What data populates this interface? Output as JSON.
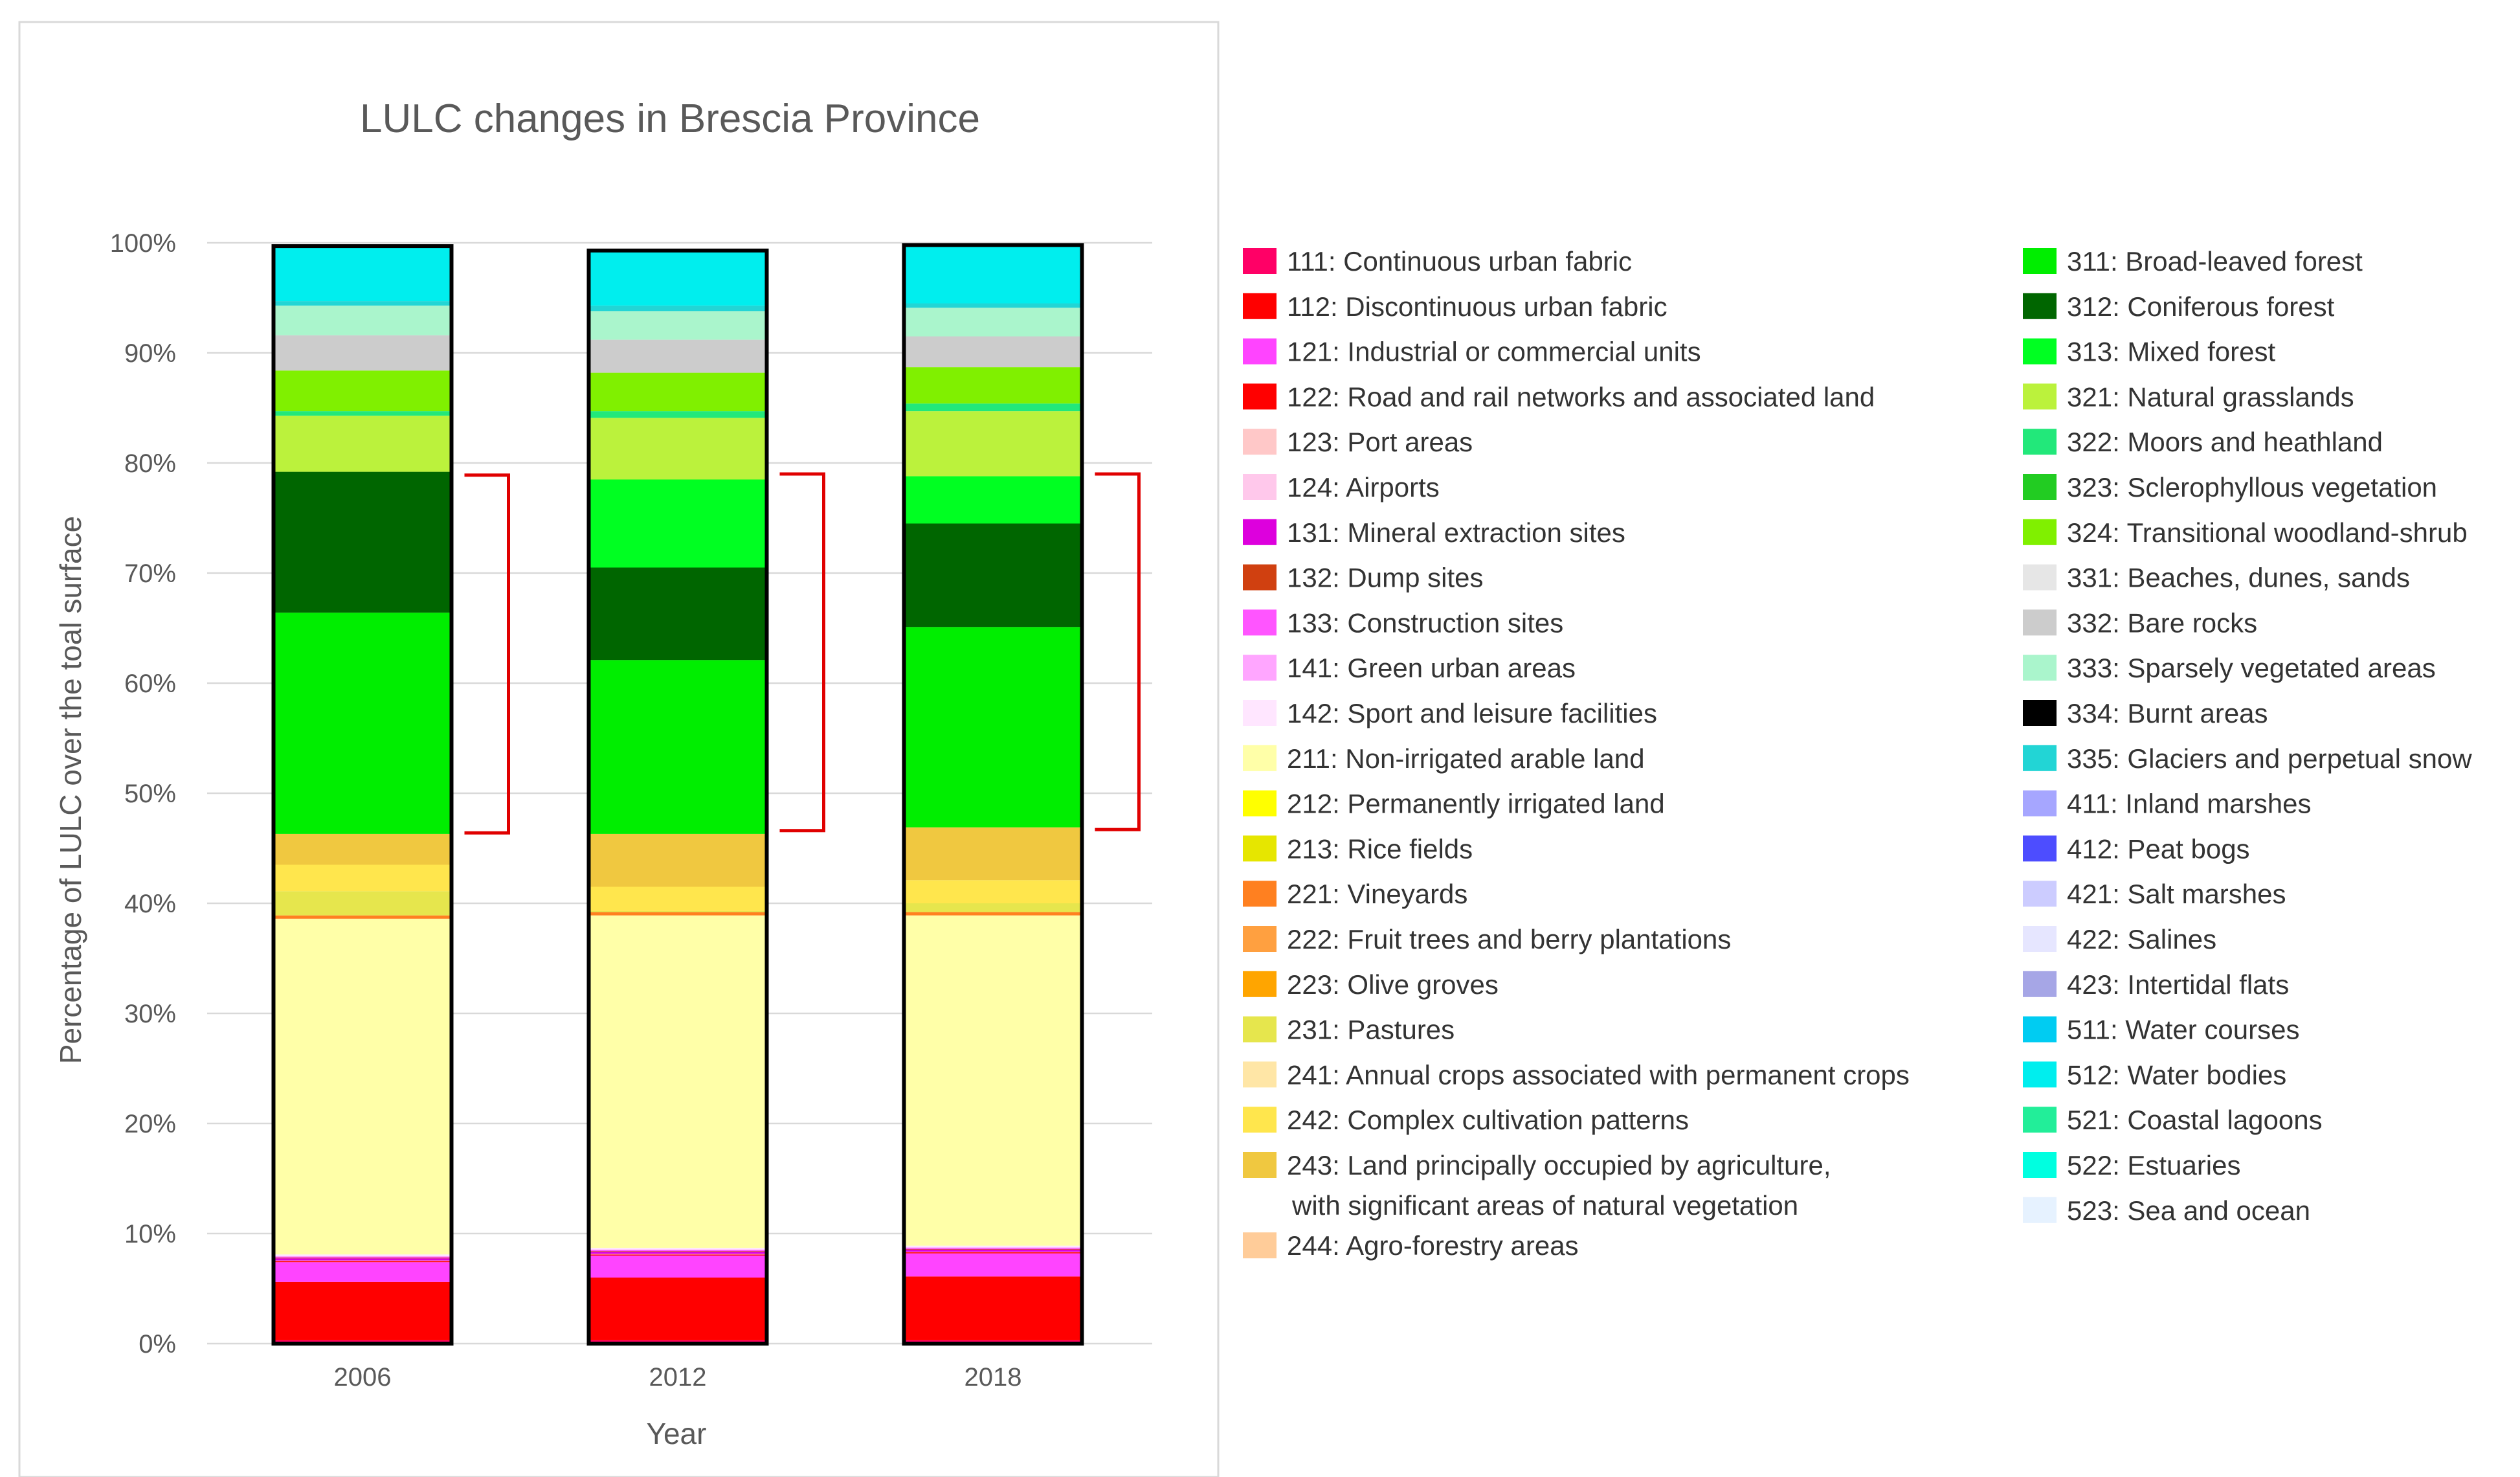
{
  "chart_data": {
    "type": "bar",
    "stacked": true,
    "title": "LULC changes in Brescia Province",
    "xlabel": "Year",
    "ylabel": "Percentage of LULC over the toal surface",
    "ylim": [
      0,
      100
    ],
    "y_ticks": [
      "0%",
      "10%",
      "20%",
      "30%",
      "40%",
      "50%",
      "60%",
      "70%",
      "80%",
      "90%",
      "100%"
    ],
    "categories": [
      "2006",
      "2012",
      "2018"
    ],
    "grid": true,
    "legend_position": "right",
    "series": [
      {
        "name": "111: Continuous urban fabric",
        "color": "#FF0066",
        "values": [
          0.3,
          0.3,
          0.3
        ]
      },
      {
        "name": "112: Discontinuous urban fabric",
        "color": "#FF0000",
        "values": [
          5.3,
          5.7,
          5.8
        ]
      },
      {
        "name": "121: Industrial or commercial units",
        "color": "#FF44FF",
        "values": [
          1.8,
          2.0,
          2.1
        ]
      },
      {
        "name": "122: Road and rail networks and associated land",
        "color": "#FF0000",
        "values": [
          0.1,
          0.1,
          0.1
        ]
      },
      {
        "name": "123: Port areas",
        "color": "#FFC8C8",
        "values": [
          0.0,
          0.0,
          0.0
        ]
      },
      {
        "name": "124: Airports",
        "color": "#FFC8EB",
        "values": [
          0.05,
          0.05,
          0.05
        ]
      },
      {
        "name": "131: Mineral extraction sites",
        "color": "#DD00DD",
        "values": [
          0.2,
          0.2,
          0.2
        ]
      },
      {
        "name": "132: Dump sites",
        "color": "#D04010",
        "values": [
          0.05,
          0.05,
          0.05
        ]
      },
      {
        "name": "133: Construction sites",
        "color": "#FF55FF",
        "values": [
          0.1,
          0.1,
          0.1
        ]
      },
      {
        "name": "141: Green urban areas",
        "color": "#FFA6FF",
        "values": [
          0.05,
          0.05,
          0.05
        ]
      },
      {
        "name": "142: Sport and leisure facilities",
        "color": "#FFE6FF",
        "values": [
          0.15,
          0.15,
          0.15
        ]
      },
      {
        "name": "211: Non-irrigated arable land",
        "color": "#FFFFA8",
        "values": [
          30.5,
          30.2,
          30.0
        ]
      },
      {
        "name": "212: Permanently irrigated land",
        "color": "#FFFF00",
        "values": [
          0.0,
          0.0,
          0.0
        ]
      },
      {
        "name": "213: Rice fields",
        "color": "#E6E600",
        "values": [
          0.0,
          0.0,
          0.0
        ]
      },
      {
        "name": "221: Vineyards",
        "color": "#FF8020",
        "values": [
          0.3,
          0.3,
          0.3
        ]
      },
      {
        "name": "222: Fruit trees and berry plantations",
        "color": "#FFA040",
        "values": [
          0.0,
          0.0,
          0.0
        ]
      },
      {
        "name": "223: Olive groves",
        "color": "#FFA500",
        "values": [
          0.0,
          0.0,
          0.0
        ]
      },
      {
        "name": "231: Pastures",
        "color": "#E6E64D",
        "values": [
          2.2,
          0.1,
          0.8
        ]
      },
      {
        "name": "241: Annual crops associated with permanent crops",
        "color": "#FFE6A6",
        "values": [
          0.0,
          0.0,
          0.0
        ]
      },
      {
        "name": "242: Complex cultivation patterns",
        "color": "#FFE64D",
        "values": [
          2.4,
          2.2,
          2.1
        ]
      },
      {
        "name": "243: Land principally occupied by agriculture, with significant areas of natural vegetation",
        "color": "#F0C840",
        "values": [
          2.8,
          4.8,
          4.8
        ]
      },
      {
        "name": "244: Agro-forestry areas",
        "color": "#FFCC99",
        "values": [
          0.0,
          0.0,
          0.0
        ]
      },
      {
        "name": "311: Broad-leaved forest",
        "color": "#00EE00",
        "values": [
          20.1,
          15.8,
          18.2
        ]
      },
      {
        "name": "312: Coniferous forest",
        "color": "#006600",
        "values": [
          12.8,
          8.4,
          9.4
        ]
      },
      {
        "name": "313: Mixed forest",
        "color": "#00FF22",
        "values": [
          0.0,
          8.0,
          4.3
        ]
      },
      {
        "name": "321: Natural grasslands",
        "color": "#BBF23C",
        "values": [
          5.1,
          5.6,
          5.9
        ]
      },
      {
        "name": "322: Moors and heathland",
        "color": "#22E87A",
        "values": [
          0.4,
          0.6,
          0.7
        ]
      },
      {
        "name": "323: Sclerophyllous vegetation",
        "color": "#22CC22",
        "values": [
          0.0,
          0.0,
          0.0
        ]
      },
      {
        "name": "324: Transitional woodland-shrub",
        "color": "#80F000",
        "values": [
          3.7,
          3.5,
          3.3
        ]
      },
      {
        "name": "331: Beaches, dunes, sands",
        "color": "#E6E6E6",
        "values": [
          0.0,
          0.0,
          0.0
        ]
      },
      {
        "name": "332: Bare rocks",
        "color": "#CCCCCC",
        "values": [
          3.2,
          3.0,
          2.8
        ]
      },
      {
        "name": "333: Sparsely vegetated areas",
        "color": "#AAF5CC",
        "values": [
          2.7,
          2.6,
          2.6
        ]
      },
      {
        "name": "334: Burnt areas",
        "color": "#000000",
        "values": [
          0.0,
          0.0,
          0.0
        ]
      },
      {
        "name": "335: Glaciers and perpetual snow",
        "color": "#22D5D5",
        "values": [
          0.4,
          0.5,
          0.4
        ]
      },
      {
        "name": "411: Inland marshes",
        "color": "#A6A6FF",
        "values": [
          0.0,
          0.0,
          0.0
        ]
      },
      {
        "name": "412: Peat bogs",
        "color": "#4D4DFF",
        "values": [
          0.0,
          0.0,
          0.0
        ]
      },
      {
        "name": "421: Salt marshes",
        "color": "#CCCCFF",
        "values": [
          0.0,
          0.0,
          0.0
        ]
      },
      {
        "name": "422: Salines",
        "color": "#E6E6FF",
        "values": [
          0.0,
          0.0,
          0.0
        ]
      },
      {
        "name": "423: Intertidal flats",
        "color": "#A6A6E6",
        "values": [
          0.0,
          0.0,
          0.0
        ]
      },
      {
        "name": "511: Water courses",
        "color": "#00CCF2",
        "values": [
          0.0,
          0.0,
          0.0
        ]
      },
      {
        "name": "512: Water bodies",
        "color": "#00EEEE",
        "values": [
          5.0,
          5.0,
          5.3
        ]
      },
      {
        "name": "521: Coastal lagoons",
        "color": "#22EE99",
        "values": [
          0.0,
          0.0,
          0.0
        ]
      },
      {
        "name": "522: Estuaries",
        "color": "#00FFE0",
        "values": [
          0.0,
          0.0,
          0.0
        ]
      },
      {
        "name": "523: Sea and ocean",
        "color": "#E6F2FF",
        "values": [
          0.0,
          0.0,
          0.0
        ]
      }
    ],
    "forest_brackets": [
      {
        "category": "2006",
        "from": 46.4,
        "to": 78.9
      },
      {
        "category": "2012",
        "from": 46.6,
        "to": 79.0
      },
      {
        "category": "2018",
        "from": 46.7,
        "to": 79.0
      }
    ],
    "bracket_color": "#E00000"
  }
}
